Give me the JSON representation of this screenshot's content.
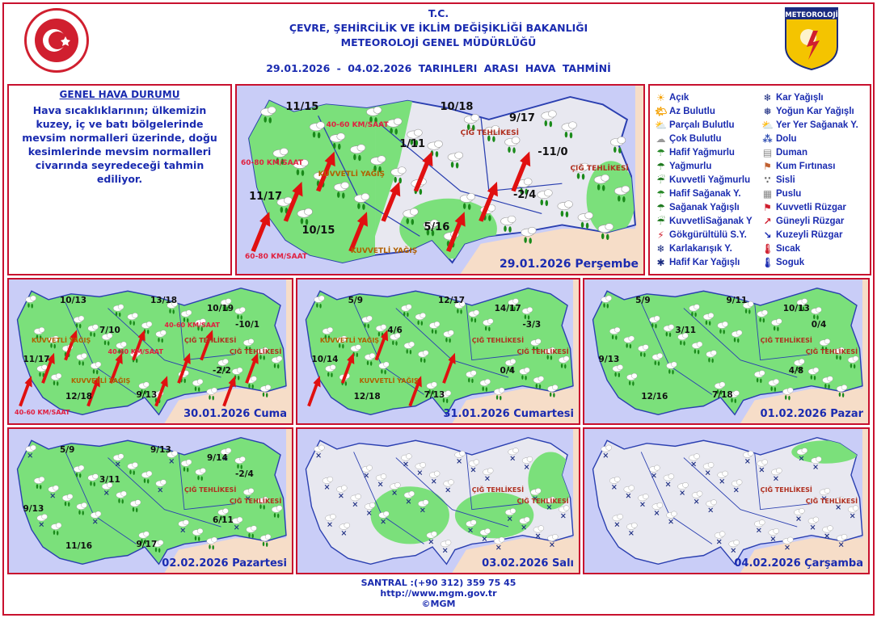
{
  "header": {
    "line1": "T.C.",
    "line2": "ÇEVRE, ŞEHİRCİLİK VE İKLİM DEĞİŞİKLİĞİ BAKANLIĞI",
    "line3": "METEOROLOJİ  GENEL  MÜDÜRLÜĞÜ",
    "dates": "29.01.2026  -  04.02.2026   TARIHLERI  ARASI  HAVA  TAHMİNİ",
    "logo_right_text": "METEOROLOJİ"
  },
  "general": {
    "title": "GENEL HAVA DURUMU",
    "text": "Hava sıcaklıklarının; ülkemizin kuzey, iç ve batı bölgelerinde mevsim normalleri üzerinde, doğu kesimlerinde mevsim normalleri civarında seyredeceği tahmin ediliyor."
  },
  "legend": [
    {
      "icon": "sun-icon",
      "glyph": "☀",
      "color": "#f4a000",
      "label": "Açık"
    },
    {
      "icon": "sun-cloud-icon",
      "glyph": "🌤",
      "color": "#f4a000",
      "label": "Az Bulutlu"
    },
    {
      "icon": "partly-cloudy-icon",
      "glyph": "⛅",
      "color": "#e38a00",
      "label": "Parçalı Bulutlu"
    },
    {
      "icon": "cloud-icon",
      "glyph": "☁",
      "color": "#999",
      "label": "Çok Bulutlu"
    },
    {
      "icon": "light-rain-icon",
      "glyph": "☂",
      "color": "#2a8a2a",
      "label": "Hafif Yağmurlu"
    },
    {
      "icon": "rain-icon",
      "glyph": "☂",
      "color": "#1f7a1f",
      "label": "Yağmurlu"
    },
    {
      "icon": "heavy-rain-icon",
      "glyph": "☔",
      "color": "#1f7a1f",
      "label": "Kuvvetli Yağmurlu"
    },
    {
      "icon": "light-shower-icon",
      "glyph": "☂",
      "color": "#2a8a2a",
      "label": "Hafif Sağanak Y."
    },
    {
      "icon": "shower-icon",
      "glyph": "☂",
      "color": "#1f7a1f",
      "label": "Sağanak Yağışlı"
    },
    {
      "icon": "heavy-shower-icon",
      "glyph": "☔",
      "color": "#1f7a1f",
      "label": "KuvvetliSağanak Y"
    },
    {
      "icon": "thunderstorm-icon",
      "glyph": "⚡",
      "color": "#d01f2f",
      "label": "Gökgürültülü S.Y."
    },
    {
      "icon": "sleet-icon",
      "glyph": "❄",
      "color": "#1a2b80",
      "label": "Karlakarışık Y."
    },
    {
      "icon": "light-snow-icon",
      "glyph": "✱",
      "color": "#1a2b80",
      "label": "Hafif Kar Yağışlı"
    },
    {
      "icon": "snow-icon",
      "glyph": "❄",
      "color": "#1a2b80",
      "label": "Kar Yağışlı"
    },
    {
      "icon": "heavy-snow-icon",
      "glyph": "❅",
      "color": "#1a2b80",
      "label": "Yoğun Kar Yağışlı"
    },
    {
      "icon": "local-shower-icon",
      "glyph": "⛅",
      "color": "#2a8a2a",
      "label": "Yer Yer Sağanak Y."
    },
    {
      "icon": "hail-icon",
      "glyph": "⁂",
      "color": "#2a4ab0",
      "label": "Dolu"
    },
    {
      "icon": "smoke-icon",
      "glyph": "▤",
      "color": "#888",
      "label": "Duman"
    },
    {
      "icon": "sandstorm-icon",
      "glyph": "⚑",
      "color": "#c06030",
      "label": "Kum Fırtınası"
    },
    {
      "icon": "fog-icon",
      "glyph": "∵",
      "color": "#666",
      "label": "Sisli"
    },
    {
      "icon": "haze-icon",
      "glyph": "▦",
      "color": "#888",
      "label": "Puslu"
    },
    {
      "icon": "strong-wind-icon",
      "glyph": "⚑",
      "color": "#d01f2f",
      "label": "Kuvvetli Rüzgar"
    },
    {
      "icon": "south-wind-arrow-icon",
      "glyph": "↗",
      "color": "#d01f2f",
      "label": "Güneyli Rüzgar"
    },
    {
      "icon": "north-wind-arrow-icon",
      "glyph": "↘",
      "color": "#1a2bb0",
      "label": "Kuzeyli Rüzgar"
    },
    {
      "icon": "hot-thermometer-icon",
      "glyph": "🌡",
      "color": "#d01f2f",
      "label": "Sıcak"
    },
    {
      "icon": "cold-thermometer-icon",
      "glyph": "🌡",
      "color": "#1a2bb0",
      "label": "Soguk"
    }
  ],
  "maps": [
    {
      "date": "29.01.2026 Perşembe",
      "temps": [
        "11/15",
        "10/18",
        "9/17",
        "1/11",
        "-11/0",
        "11/17",
        "-2/4",
        "10/15",
        "5/16"
      ],
      "warnings": [
        "ÇIĞ TEHLİKESİ",
        "ÇIĞ TEHLİKESİ",
        "KUVVETLİ YAĞIŞ",
        "KUVVETLİ YAĞIŞ",
        "40-60 KM/SAAT",
        "60-80 KM/SAAT",
        "60-80 KM/SAAT"
      ]
    },
    {
      "date": "30.01.2026 Cuma",
      "temps": [
        "10/13",
        "13/18",
        "10/19",
        "7/10",
        "-10/1",
        "11/17",
        "-2/2",
        "12/18",
        "9/13"
      ],
      "warnings": [
        "ÇIĞ TEHLİKESİ",
        "ÇIĞ TEHLİKESİ",
        "KUVVETLİ YAĞIŞ",
        "KUVVETLİ YAĞIŞ",
        "40-60 KM/SAAT",
        "40-60 KM/SAAT",
        "40-60 KM/SAAT"
      ]
    },
    {
      "date": "31.01.2026 Cumartesi",
      "temps": [
        "5/9",
        "12/17",
        "14/17",
        "4/6",
        "-3/3",
        "10/14",
        "0/4",
        "12/18",
        "7/13"
      ],
      "warnings": [
        "ÇIĞ TEHLİKESİ",
        "ÇIĞ TEHLİKESİ",
        "KUVVETLİ YAĞIŞ",
        "KUVVETLİ YAĞIŞ"
      ]
    },
    {
      "date": "01.02.2026 Pazar",
      "temps": [
        "5/9",
        "9/11",
        "10/13",
        "3/11",
        "0/4",
        "9/13",
        "4/8",
        "12/16",
        "7/18"
      ],
      "warnings": [
        "ÇIĞ TEHLİKESİ",
        "ÇIĞ TEHLİKESİ"
      ]
    },
    {
      "date": "02.02.2026 Pazartesi",
      "temps": [
        "5/9",
        "9/13",
        "9/14",
        "3/11",
        "-2/4",
        "9/13",
        "6/11",
        "11/16",
        "9/17"
      ],
      "warnings": [
        "ÇIĞ TEHLİKESİ",
        "ÇIĞ TEHLİKESİ"
      ]
    },
    {
      "date": "03.02.2026 Salı",
      "temps": [],
      "warnings": [
        "ÇIĞ TEHLİKESİ",
        "ÇIĞ TEHLİKESİ"
      ]
    },
    {
      "date": "04.02.2026 Çarşamba",
      "temps": [],
      "warnings": [
        "ÇIĞ TEHLİKESİ",
        "ÇIĞ TEHLİKESİ"
      ]
    }
  ],
  "colors": {
    "border": "#c8102e",
    "text": "#1a2bb0",
    "land_green": "#7be07b",
    "land_grey": "#e8e8f0",
    "sea": "#c9cdf7",
    "neighbor": "#f6ddc8",
    "arrow": "#e01010"
  },
  "footer": {
    "phone": "SANTRAL :(+90 312) 359 75 45",
    "url": "http://www.mgm.gov.tr",
    "copyright": "©MGM"
  }
}
